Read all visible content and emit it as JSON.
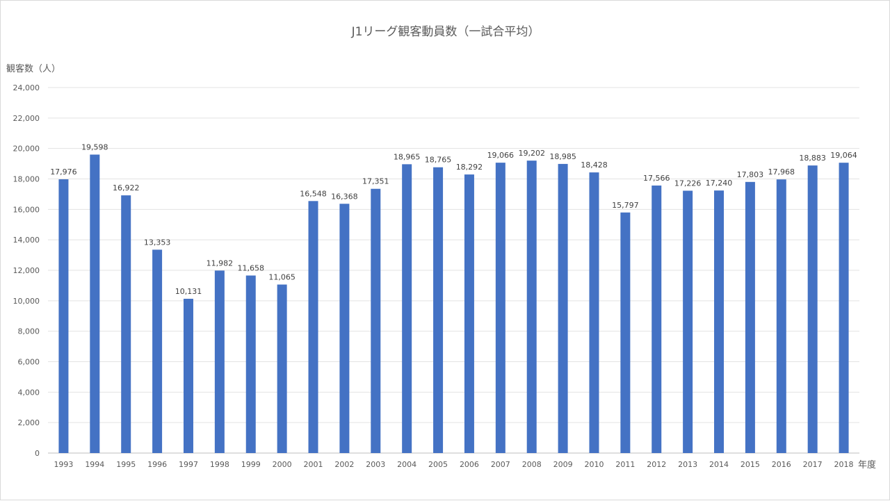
{
  "chart_data": {
    "type": "bar",
    "title": "J1リーグ観客動員数（一試合平均）",
    "ylabel": "観客数（人）",
    "xlabel": "年度",
    "ylim": [
      0,
      24000
    ],
    "ytick_step": 2000,
    "grid": true,
    "legend": "none",
    "bar_color": "#4472C4",
    "categories": [
      "1993",
      "1994",
      "1995",
      "1996",
      "1997",
      "1998",
      "1999",
      "2000",
      "2001",
      "2002",
      "2003",
      "2004",
      "2005",
      "2006",
      "2007",
      "2008",
      "2009",
      "2010",
      "2011",
      "2012",
      "2013",
      "2014",
      "2015",
      "2016",
      "2017",
      "2018"
    ],
    "values": [
      17976,
      19598,
      16922,
      13353,
      10131,
      11982,
      11658,
      11065,
      16548,
      16368,
      17351,
      18965,
      18765,
      18292,
      19066,
      19202,
      18985,
      18428,
      15797,
      17566,
      17226,
      17240,
      17803,
      17968,
      18883,
      19064
    ],
    "ytick_labels": [
      "0",
      "2,000",
      "4,000",
      "6,000",
      "8,000",
      "10,000",
      "12,000",
      "14,000",
      "16,000",
      "18,000",
      "20,000",
      "22,000",
      "24,000"
    ],
    "data_labels": [
      "17,976",
      "19,598",
      "16,922",
      "13,353",
      "10,131",
      "11,982",
      "11,658",
      "11,065",
      "16,548",
      "16,368",
      "17,351",
      "18,965",
      "18,765",
      "18,292",
      "19,066",
      "19,202",
      "18,985",
      "18,428",
      "15,797",
      "17,566",
      "17,226",
      "17,240",
      "17,803",
      "17,968",
      "18,883",
      "19,064"
    ]
  }
}
